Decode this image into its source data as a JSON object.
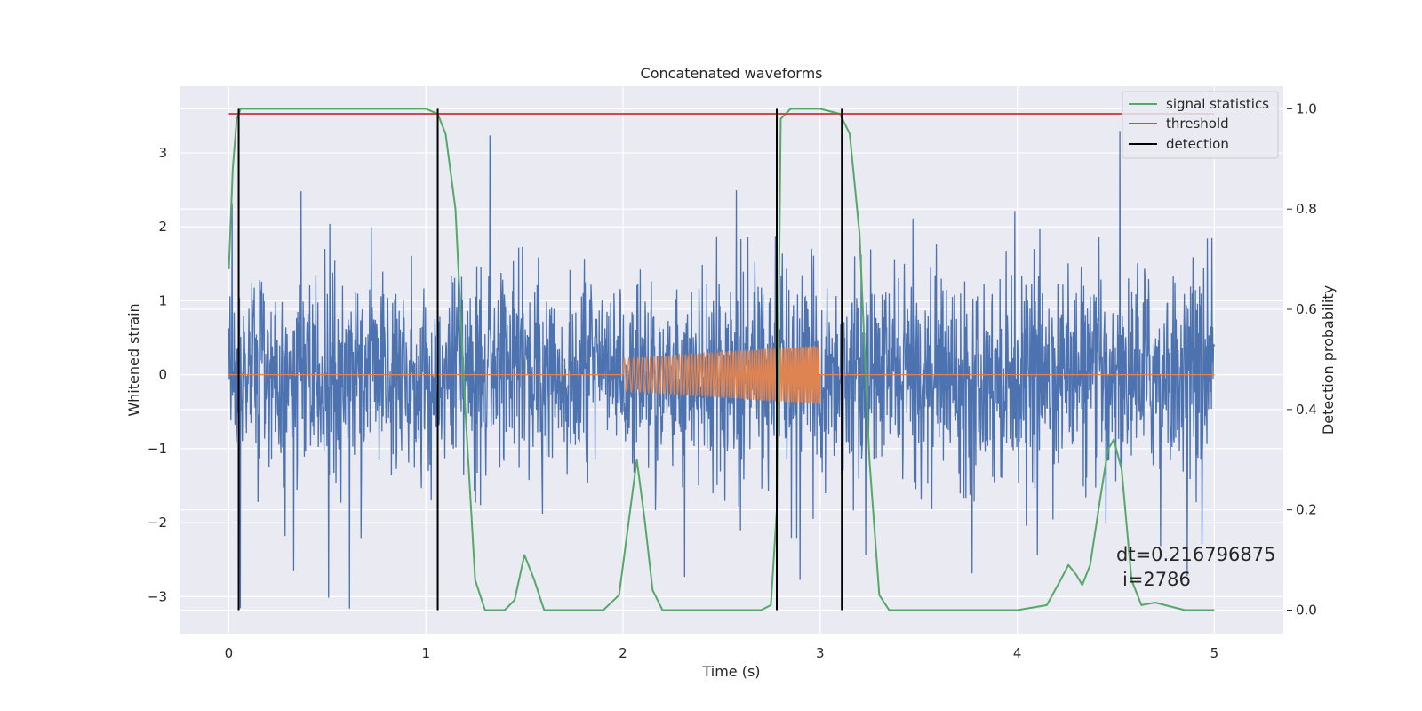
{
  "chart_data": {
    "type": "line",
    "title": "Concatenated waveforms",
    "xlabel": "Time (s)",
    "ylabel": "Whitened strain",
    "y2label": "Detection probability",
    "xlim": [
      -0.25,
      5.35
    ],
    "ylim": [
      -3.5,
      3.9
    ],
    "y2lim": [
      -0.047,
      1.045
    ],
    "x_ticks": [
      "0",
      "1",
      "2",
      "3",
      "4",
      "5"
    ],
    "y_ticks": [
      "−3",
      "−2",
      "−1",
      "0",
      "1",
      "2",
      "3"
    ],
    "y2_ticks": [
      "0.0",
      "0.2",
      "0.4",
      "0.6",
      "0.8",
      "1.0"
    ],
    "grid": true,
    "legend_position": "top-right",
    "series": [
      {
        "name": "",
        "axis": "left",
        "color": "#4c72b0",
        "kind": "noise",
        "x_range": [
          0,
          5
        ],
        "std": 0.65,
        "amplitude_max": 3.5
      },
      {
        "name": "",
        "axis": "left",
        "color": "#dd8452",
        "kind": "chirp",
        "x_range": [
          2,
          3
        ],
        "amplitude_range": [
          0.22,
          0.4
        ]
      },
      {
        "name": "signal statistics",
        "axis": "right",
        "color": "#55a868",
        "x": [
          0.0,
          0.02,
          0.04,
          0.06,
          0.1,
          0.2,
          0.5,
          1.0,
          1.06,
          1.1,
          1.15,
          1.2,
          1.25,
          1.3,
          1.4,
          1.45,
          1.5,
          1.55,
          1.6,
          1.7,
          1.9,
          1.98,
          2.03,
          2.07,
          2.11,
          2.15,
          2.2,
          2.3,
          2.5,
          2.7,
          2.75,
          2.78,
          2.8,
          2.85,
          3.0,
          3.1,
          3.15,
          3.2,
          3.25,
          3.3,
          3.35,
          3.45,
          3.6,
          4.0,
          4.15,
          4.22,
          4.26,
          4.3,
          4.33,
          4.37,
          4.42,
          4.46,
          4.49,
          4.53,
          4.58,
          4.63,
          4.7,
          4.75,
          4.85,
          5.0
        ],
        "values": [
          0.68,
          0.88,
          0.98,
          1.0,
          1.0,
          1.0,
          1.0,
          1.0,
          0.99,
          0.95,
          0.8,
          0.4,
          0.06,
          0.0,
          0.0,
          0.02,
          0.11,
          0.06,
          0.0,
          0.0,
          0.0,
          0.03,
          0.18,
          0.3,
          0.18,
          0.04,
          0.0,
          0.0,
          0.0,
          0.0,
          0.01,
          0.2,
          0.98,
          1.0,
          1.0,
          0.99,
          0.95,
          0.75,
          0.3,
          0.03,
          0.0,
          0.0,
          0.0,
          0.0,
          0.01,
          0.06,
          0.09,
          0.07,
          0.05,
          0.09,
          0.22,
          0.32,
          0.34,
          0.28,
          0.06,
          0.01,
          0.015,
          0.01,
          0.0,
          0.0
        ]
      },
      {
        "name": "threshold",
        "axis": "right",
        "color": "#c44e52",
        "x": [
          0,
          5
        ],
        "values": [
          0.99,
          0.99
        ]
      },
      {
        "name": "detection",
        "axis": "right",
        "color": "#000000",
        "x": [
          0.05,
          1.06,
          2.78,
          3.11
        ],
        "values": [
          1.0,
          1.0,
          1.0,
          1.0
        ]
      }
    ],
    "annotation": {
      "line1": "dt=0.216796875",
      "line2": "i=2786"
    }
  }
}
